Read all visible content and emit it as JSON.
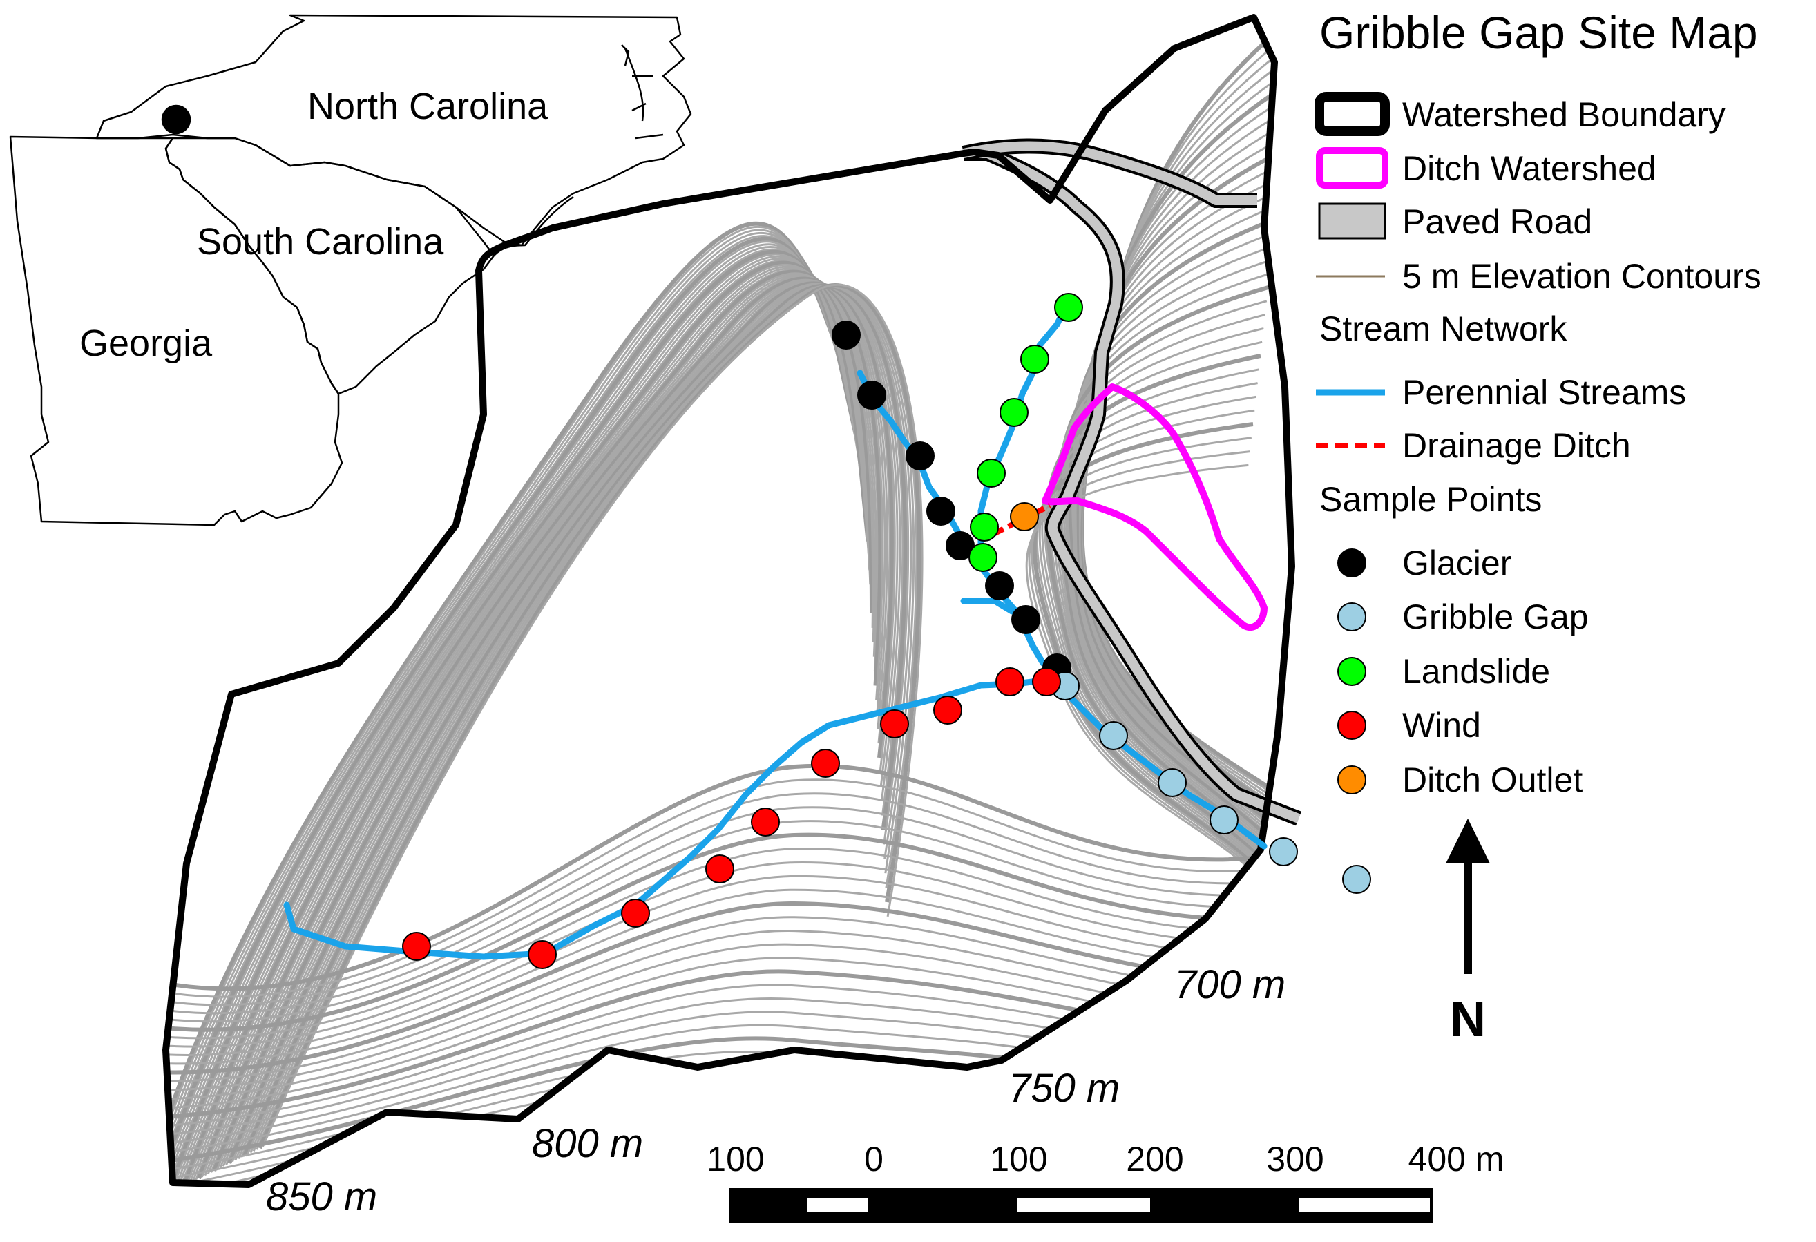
{
  "map": {
    "title": "Gribble Gap Site Map",
    "colors": {
      "boundary": "#000000",
      "ditch_watershed": "#ff00ff",
      "road_fill": "#c8c8c8",
      "contour": "#a8a8a8",
      "index_contour": "#9a9a9a",
      "stream": "#1aa3ea",
      "ditch": "#ff0000",
      "glacier": "#000000",
      "gribble_gap": "#9dcfe3",
      "landslide": "#00ff00",
      "wind": "#ff0000",
      "ditch_outlet": "#ff8c00"
    }
  },
  "inset": {
    "labels": {
      "north_carolina": "North Carolina",
      "south_carolina": "South Carolina",
      "georgia": "Georgia"
    }
  },
  "legend": {
    "watershed_boundary": "Watershed Boundary",
    "ditch_watershed": "Ditch Watershed",
    "paved_road": "Paved Road",
    "contours": "5 m Elevation Contours",
    "stream_network_heading": "Stream Network",
    "perennial_streams": "Perennial Streams",
    "drainage_ditch": "Drainage Ditch",
    "sample_points_heading": "Sample Points",
    "glacier": "Glacier",
    "gribble_gap": "Gribble Gap",
    "landslide": "Landslide",
    "wind": "Wind",
    "ditch_outlet": "Ditch Outlet"
  },
  "elevation_labels": {
    "e700": "700 m",
    "e750": "750 m",
    "e800": "800 m",
    "e850": "850 m"
  },
  "scale_bar": {
    "labels": [
      "100",
      "0",
      "100",
      "200",
      "300",
      "400 m"
    ]
  },
  "north_arrow": {
    "label": "N"
  }
}
